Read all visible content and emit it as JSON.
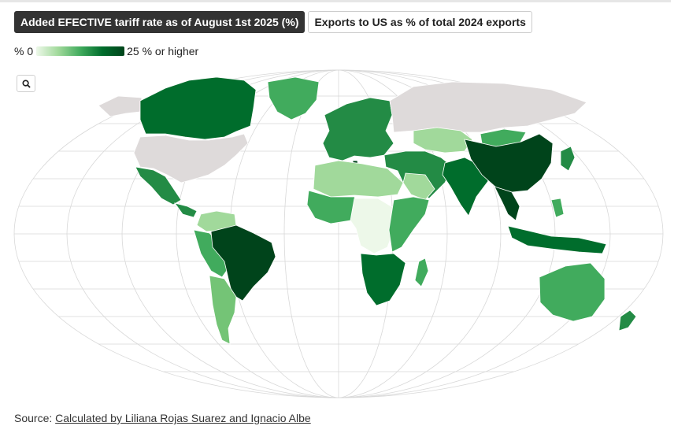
{
  "tabs": [
    {
      "label": "Added EFECTIVE tariff rate as of August 1st 2025 (%)",
      "active": true
    },
    {
      "label": "Exports to US as % of total 2024 exports",
      "active": false
    }
  ],
  "legend": {
    "min_label": "% 0",
    "max_label": "25 % or higher",
    "colors": [
      "#edf8e9",
      "#a1d99b",
      "#41ab5d",
      "#006d2c",
      "#00441b"
    ],
    "no_data_color": "#dedada"
  },
  "zoom_button": {
    "icon": "search-icon"
  },
  "map": {
    "projection": "robinson-like",
    "graticule": true,
    "regions": [
      {
        "id": "usa",
        "shade": "nodata"
      },
      {
        "id": "canada",
        "shade": "high"
      },
      {
        "id": "alaska",
        "shade": "nodata"
      },
      {
        "id": "greenland",
        "shade": "mid"
      },
      {
        "id": "mexico",
        "shade": "midhigh"
      },
      {
        "id": "central-america",
        "shade": "midhigh"
      },
      {
        "id": "brazil",
        "shade": "max"
      },
      {
        "id": "colombia-venezuela",
        "shade": "light"
      },
      {
        "id": "peru-bolivia",
        "shade": "mid"
      },
      {
        "id": "argentina-chile",
        "shade": "lightmid"
      },
      {
        "id": "europe",
        "shade": "midhigh"
      },
      {
        "id": "russia",
        "shade": "nodata"
      },
      {
        "id": "north-africa",
        "shade": "light"
      },
      {
        "id": "west-africa",
        "shade": "mid"
      },
      {
        "id": "central-africa",
        "shade": "pale"
      },
      {
        "id": "east-africa",
        "shade": "mid"
      },
      {
        "id": "southern-africa",
        "shade": "high"
      },
      {
        "id": "madagascar",
        "shade": "mid"
      },
      {
        "id": "middle-east",
        "shade": "midhigh"
      },
      {
        "id": "central-asia",
        "shade": "light"
      },
      {
        "id": "india",
        "shade": "high"
      },
      {
        "id": "china",
        "shade": "max"
      },
      {
        "id": "mongolia",
        "shade": "mid"
      },
      {
        "id": "southeast-asia",
        "shade": "max"
      },
      {
        "id": "indonesia",
        "shade": "high"
      },
      {
        "id": "japan",
        "shade": "midhigh"
      },
      {
        "id": "australia",
        "shade": "mid"
      },
      {
        "id": "new-zealand",
        "shade": "midhigh"
      }
    ]
  },
  "source": {
    "prefix": "Source: ",
    "link_text": "Calculated by Liliana Rojas Suarez and Ignacio Albe"
  }
}
